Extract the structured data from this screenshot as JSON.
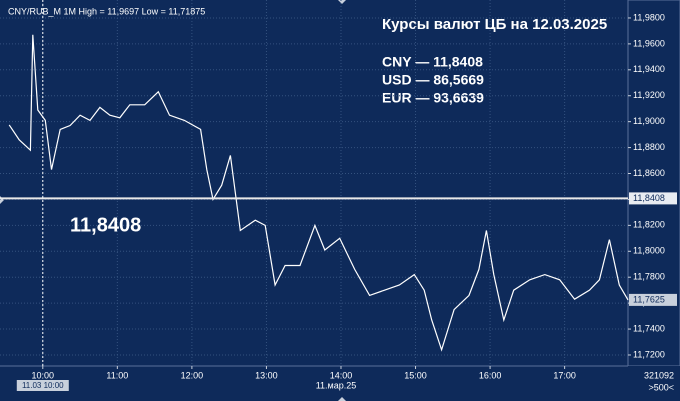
{
  "chart_data": {
    "type": "line",
    "info": "CNY/RUB_M 1M High = 11,9697 Low = 11,71875",
    "title": "Курсы валют ЦБ на 12.03.2025",
    "rates": [
      "CNY — 11,8408",
      "USD — 86,5669",
      "EUR — 93,6639"
    ],
    "x": [
      573,
      581,
      590,
      592,
      596,
      602,
      607,
      614,
      622,
      630,
      638,
      646,
      654,
      662,
      670,
      682,
      693,
      702,
      714,
      727,
      732,
      737,
      744,
      751,
      759,
      771,
      779,
      787,
      795,
      807,
      819,
      827,
      839,
      851,
      863,
      875,
      887,
      899,
      907,
      913,
      921,
      931,
      943,
      951,
      957,
      963,
      971,
      979,
      992,
      1004,
      1016,
      1028,
      1040,
      1048,
      1056,
      1064,
      1071
    ],
    "series": [
      {
        "name": "CNY/RUB_M",
        "color": "#ffffff",
        "values": [
          11.8975,
          11.886,
          11.878,
          11.967,
          11.909,
          11.901,
          11.863,
          11.894,
          11.897,
          11.905,
          11.901,
          11.911,
          11.905,
          11.903,
          11.913,
          11.913,
          11.923,
          11.905,
          11.901,
          11.894,
          11.863,
          11.84,
          11.851,
          11.874,
          11.816,
          11.824,
          11.82,
          11.774,
          11.789,
          11.789,
          11.82,
          11.801,
          11.81,
          11.786,
          11.766,
          11.77,
          11.774,
          11.782,
          11.77,
          11.747,
          11.724,
          11.755,
          11.766,
          11.786,
          11.816,
          11.782,
          11.747,
          11.77,
          11.778,
          11.782,
          11.778,
          11.763,
          11.77,
          11.778,
          11.809,
          11.774,
          11.7625
        ]
      }
    ],
    "xlim": [
      572,
      1071
    ],
    "xticks": [
      {
        "value": 600,
        "label": "10:00"
      },
      {
        "value": 660,
        "label": "11:00"
      },
      {
        "value": 720,
        "label": "12:00"
      },
      {
        "value": 780,
        "label": "13:00"
      },
      {
        "value": 840,
        "label": "14:00"
      },
      {
        "value": 900,
        "label": "15:00"
      },
      {
        "value": 960,
        "label": "16:00"
      },
      {
        "value": 1020,
        "label": "17:00"
      }
    ],
    "ylim": [
      11.7115,
      11.99
    ],
    "yticks": [
      {
        "value": 11.72,
        "label": "11,7200"
      },
      {
        "value": 11.74,
        "label": "11,7400"
      },
      {
        "value": 11.76,
        "label": "11,7600"
      },
      {
        "value": 11.78,
        "label": "11,7800"
      },
      {
        "value": 11.8,
        "label": "11,8000"
      },
      {
        "value": 11.82,
        "label": "11,8200"
      },
      {
        "value": 11.84,
        "label": "11,8400"
      },
      {
        "value": 11.86,
        "label": "11,8600"
      },
      {
        "value": 11.88,
        "label": "11,8800"
      },
      {
        "value": 11.9,
        "label": "11,9000"
      },
      {
        "value": 11.92,
        "label": "11,9200"
      },
      {
        "value": 11.94,
        "label": "11,9400"
      },
      {
        "value": 11.96,
        "label": "11,9600"
      },
      {
        "value": 11.98,
        "label": "11,9800"
      }
    ],
    "grid": true,
    "hline": {
      "value": 11.8408,
      "label": "11,8408"
    },
    "last_price": {
      "value": 11.7625,
      "label": "11,7625"
    },
    "cursor": {
      "value": 600,
      "label": "11.03 10:00"
    },
    "date_label": "11.мар.25",
    "volume_label": "321092",
    "zoom_label": ">500<"
  }
}
